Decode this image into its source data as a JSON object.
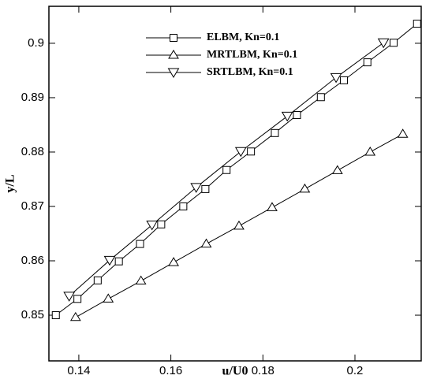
{
  "chart_data": {
    "type": "line",
    "xlabel": "u/U0",
    "ylabel": "y/L",
    "xlim": [
      0.1335,
      0.2144
    ],
    "ylim": [
      0.8416,
      0.9068
    ],
    "xticks": [
      0.14,
      0.16,
      0.18,
      0.2
    ],
    "yticks": [
      0.85,
      0.86,
      0.87,
      0.88,
      0.89,
      0.9
    ],
    "legend": "upper left",
    "series": [
      {
        "name": "ELBM, Kn=0.1",
        "color": "#000000",
        "marker": "square",
        "x": [
          0.135,
          0.1397,
          0.1441,
          0.1487,
          0.1533,
          0.1579,
          0.1627,
          0.1675,
          0.1721,
          0.1774,
          0.1826,
          0.1874,
          0.1926,
          0.1976,
          0.2027,
          0.2084,
          0.2135
        ],
        "values": [
          0.85,
          0.853,
          0.8564,
          0.8599,
          0.8631,
          0.8667,
          0.87,
          0.8732,
          0.8767,
          0.8801,
          0.8835,
          0.8868,
          0.8901,
          0.8932,
          0.8965,
          0.9001,
          0.9036
        ]
      },
      {
        "name": "MRTLBM, Kn=0.1",
        "color": "#000000",
        "marker": "triangle-up",
        "x": [
          0.1393,
          0.1464,
          0.1535,
          0.1606,
          0.1677,
          0.1748,
          0.182,
          0.1891,
          0.1962,
          0.2033,
          0.2104
        ],
        "values": [
          0.8496,
          0.853,
          0.8563,
          0.8597,
          0.8631,
          0.8664,
          0.8698,
          0.8732,
          0.8766,
          0.88,
          0.8833
        ]
      },
      {
        "name": "SRTLBM, Kn=0.1",
        "color": "#000000",
        "marker": "triangle-down",
        "x": [
          0.1379,
          0.1467,
          0.1559,
          0.1655,
          0.1752,
          0.1853,
          0.1959,
          0.2062
        ],
        "values": [
          0.8535,
          0.8601,
          0.8666,
          0.8735,
          0.8801,
          0.8866,
          0.8937,
          0.9001
        ]
      }
    ]
  }
}
